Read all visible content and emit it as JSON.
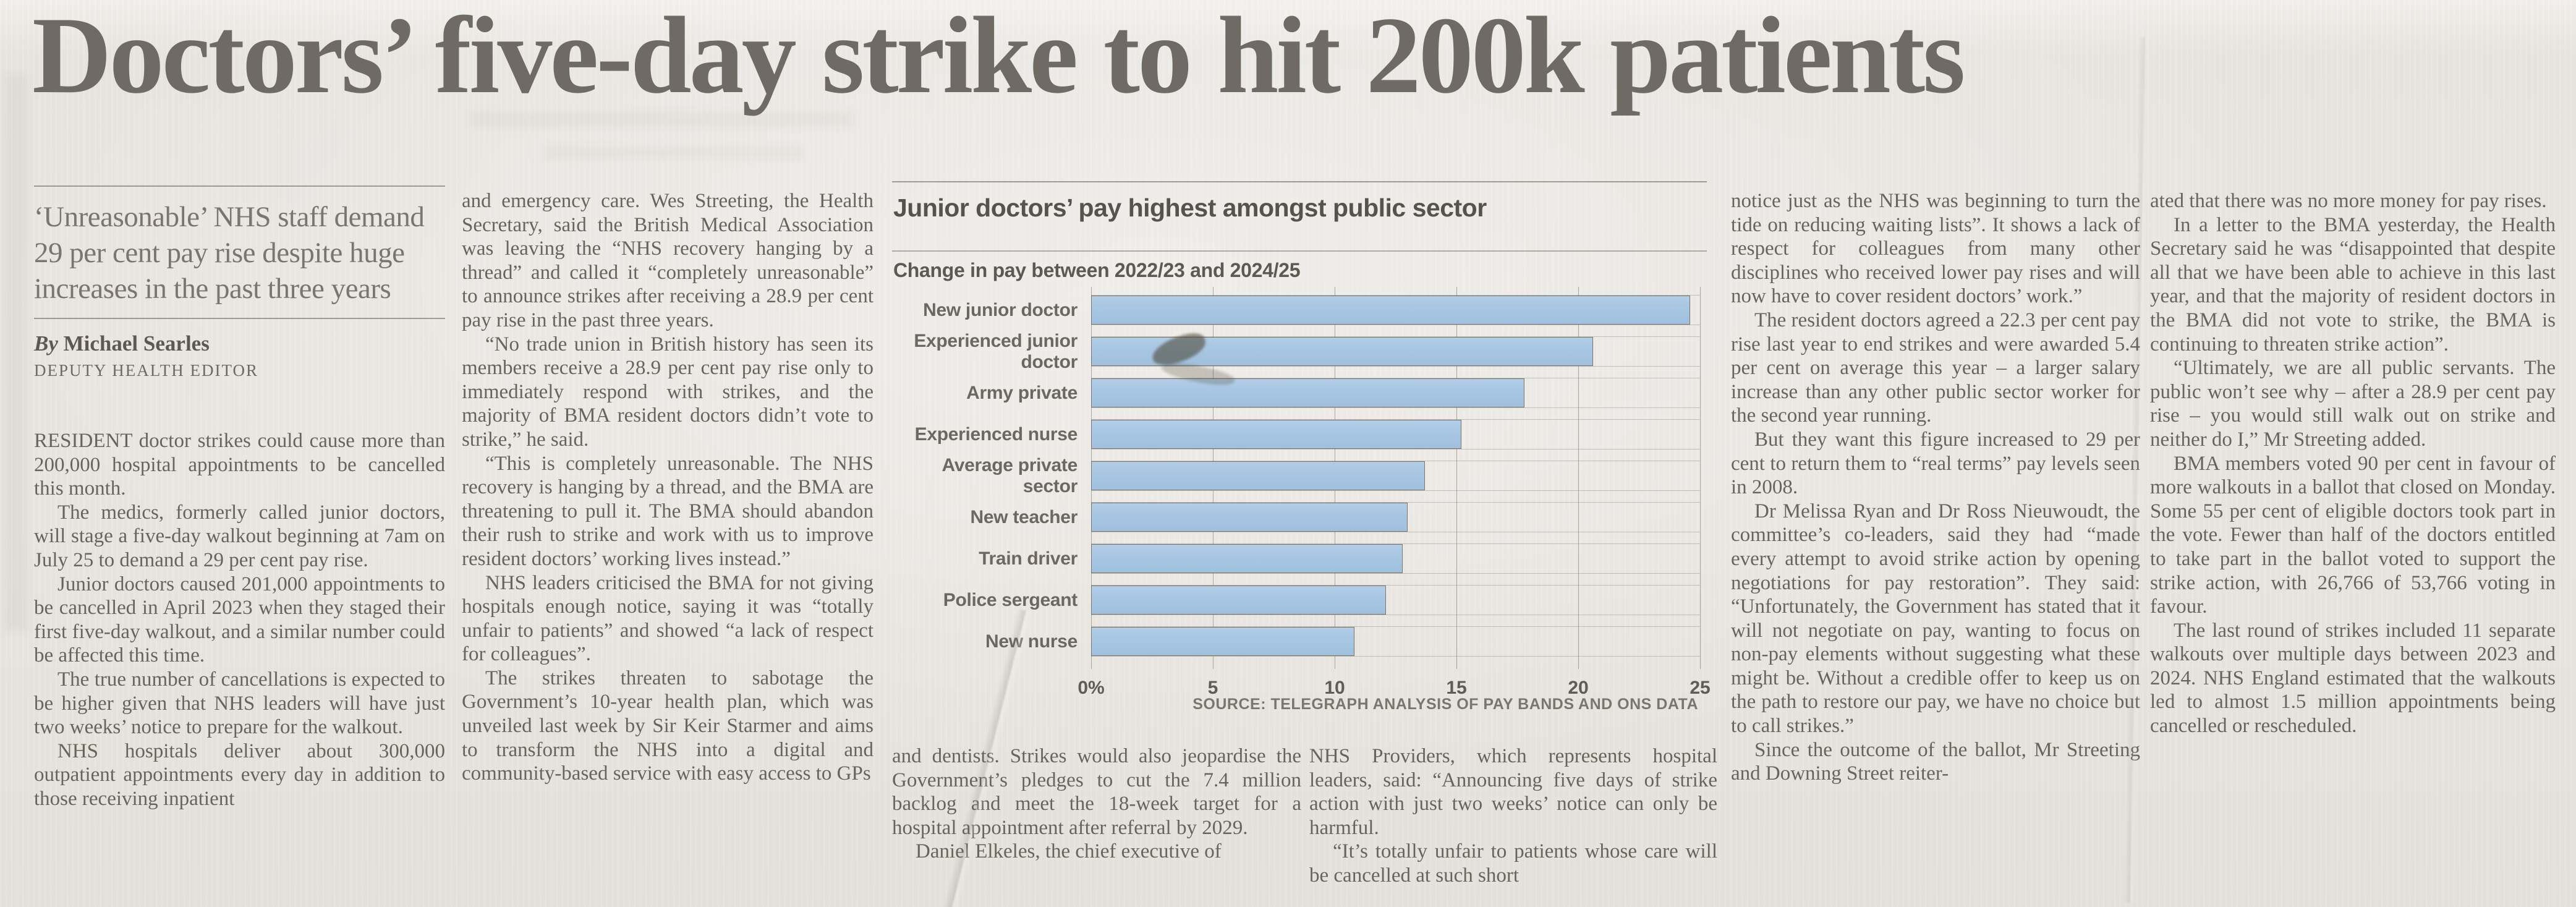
{
  "masthead": {
    "headline": "Doctors’ five-day strike to hit 200k patients"
  },
  "deck": {
    "text": "‘Unreasonable’ NHS staff demand 29 per cent pay rise despite huge increases in the past three years"
  },
  "byline": {
    "by": "By",
    "author": "Michael Searles",
    "role": "DEPUTY HEALTH EDITOR"
  },
  "columns": [
    {
      "paragraphs": [
        "RESIDENT doctor strikes could cause more than 200,000 hospital appointments to be cancelled this month.",
        "The medics, formerly called junior doctors, will stage a five-day walkout beginning at 7am on July 25 to demand a 29 per cent pay rise.",
        "Junior doctors caused 201,000 appointments to be cancelled in April 2023 when they staged their first five-day walkout, and a similar number could be affected this time.",
        "The true number of cancellations is expected to be higher given that NHS leaders will have just two weeks’ notice to prepare for the walkout.",
        "NHS hospitals deliver about 300,000 outpatient appointments every day in addition to those receiving inpatient"
      ]
    },
    {
      "paragraphs": [
        "and emergency care. Wes Streeting, the Health Secretary, said the British Medical Association was leaving the “NHS recovery hanging by a thread” and called it “completely unreasonable” to announce strikes after receiving a 28.9 per cent pay rise in the past three years.",
        "“No trade union in British history has seen its members receive a 28.9 per cent pay rise only to immediately respond with strikes, and the majority of BMA resident doctors didn’t vote to strike,” he said.",
        "“This is completely unreasonable. The NHS recovery is hanging by a thread, and the BMA are threatening to pull it. The BMA should abandon their rush to strike and work with us to improve resident doctors’ working lives instead.”",
        "NHS leaders criticised the BMA for not giving hospitals enough notice, saying it was “totally unfair to patients” and showed “a lack of respect for colleagues”.",
        "The strikes threaten to sabotage the Government’s 10-year health plan, which was unveiled last week by Sir Keir Starmer and aims to transform the NHS into a digital and community-based service with easy access to GPs"
      ]
    },
    {
      "paragraphs": [
        "and dentists. Strikes would also jeopardise the Government’s pledges to cut the 7.4 million backlog and meet the 18-week target for a hospital appointment after referral by 2029.",
        "Daniel Elkeles, the chief executive of"
      ]
    },
    {
      "paragraphs": [
        "NHS Providers, which represents hospital leaders, said: “Announcing five days of strike action with just two weeks’ notice can only be harmful.",
        "“It’s totally unfair to patients whose care will be cancelled at such short"
      ]
    },
    {
      "paragraphs": [
        "notice just as the NHS was beginning to turn the tide on reducing waiting lists”. It shows a lack of respect for colleagues from many other disciplines who received lower pay rises and will now have to cover resident doctors’ work.”",
        "The resident doctors agreed a 22.3 per cent pay rise last year to end strikes and were awarded 5.4 per cent on average this year – a larger salary increase than any other public sector worker for the second year running.",
        "But they want this figure increased to 29 per cent to return them to “real terms” pay levels seen in 2008.",
        "Dr Melissa Ryan and Dr Ross Nieuwoudt, the committee’s co-leaders, said they had “made every attempt to avoid strike action by opening negotiations for pay restoration”. They said: “Unfortunately, the Government has stated that it will not negotiate on pay, wanting to focus on non-pay elements without suggesting what these might be. Without a credible offer to keep us on the path to restore our pay, we have no choice but to call strikes.”",
        "Since the outcome of the ballot, Mr Streeting and Downing Street reiter-"
      ]
    },
    {
      "paragraphs": [
        "ated that there was no more money for pay rises.",
        "In a letter to the BMA yesterday, the Health Secretary said he was “disappointed that despite all that we have been able to achieve in this last year, and that the majority of resident doctors in the BMA did not vote to strike, the BMA is continuing to threaten strike action”.",
        "“Ultimately, we are all public servants. The public won’t see why – after a 28.9 per cent pay rise – you would still walk out on strike and neither do I,” Mr Streeting added.",
        "BMA members voted 90 per cent in favour of more walkouts in a ballot that closed on Monday. Some 55 per cent of eligible doctors took part in the vote. Fewer than half of the doctors entitled to take part in the ballot voted to support the strike action, with 26,766 of 53,766 voting in favour.",
        "The last round of strikes included 11 separate walkouts over multiple days between 2023 and 2024. NHS England estimated that the walkouts led to almost 1.5 million appointments being cancelled or rescheduled."
      ]
    }
  ],
  "chart_data": {
    "type": "bar",
    "orientation": "horizontal",
    "title": "Junior doctors’ pay highest amongst public sector",
    "subtitle": "Change in pay between 2022/23 and 2024/25",
    "categories": [
      "New junior doctor",
      "Experienced junior doctor",
      "Army private",
      "Experienced nurse",
      "Average private sector",
      "New teacher",
      "Train driver",
      "Police sergeant",
      "New nurse"
    ],
    "values": [
      24.6,
      20.6,
      17.8,
      15.2,
      13.7,
      13.0,
      12.8,
      12.1,
      10.8
    ],
    "xlabel": "",
    "ylabel": "",
    "xlim": [
      0,
      25
    ],
    "xtick_labels": [
      "0%",
      "5",
      "10",
      "15",
      "20",
      "25"
    ],
    "xtick_values": [
      0,
      5,
      10,
      15,
      20,
      25
    ],
    "grid": true,
    "legend": false,
    "bar_color": "#a7c6e2",
    "bar_border_color": "#7d7668",
    "source": "SOURCE: TELEGRAPH ANALYSIS OF PAY BANDS AND ONS DATA"
  }
}
